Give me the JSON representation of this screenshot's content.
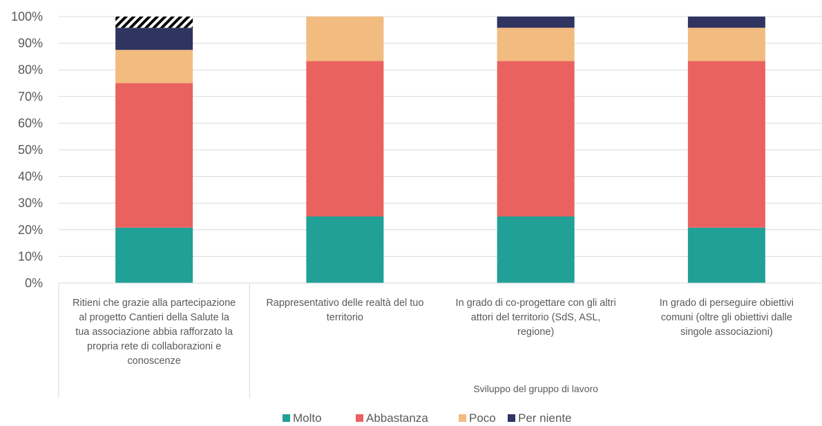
{
  "chart_data": {
    "type": "bar",
    "stacked": true,
    "categories": [
      [
        "Ritieni che grazie alla partecipazione",
        "al progetto Cantieri della Salute la",
        "tua associazione abbia rafforzato la",
        "propria rete di collaborazioni e",
        "conoscenze"
      ],
      [
        "Rappresentativo delle realtà del tuo",
        "territorio"
      ],
      [
        "In grado di co-progettare con gli altri",
        "attori del territorio (SdS, ASL,",
        "regione)"
      ],
      [
        "In grado di perseguire obiettivi",
        "comuni (oltre gli obiettivi dalle",
        "singole associazioni)"
      ]
    ],
    "group_label": "Sviluppo del gruppo di lavoro",
    "series": [
      {
        "name": "Molto",
        "color": "#20a096",
        "values": [
          20.8,
          25,
          25,
          20.8
        ]
      },
      {
        "name": "Abbastanza",
        "color": "#e9625f",
        "values": [
          54.2,
          58.3,
          58.3,
          62.5
        ]
      },
      {
        "name": "Poco",
        "color": "#f2bb80",
        "values": [
          12.5,
          16.7,
          12.5,
          12.5
        ]
      },
      {
        "name": "Per niente",
        "color": "#2f3461",
        "values": [
          8.3,
          0,
          4.2,
          4.2
        ]
      }
    ],
    "unlabeled_segment": {
      "pattern": "hatched",
      "values": [
        4.2,
        0,
        0,
        0
      ]
    },
    "yticks": [
      "0%",
      "10%",
      "20%",
      "30%",
      "40%",
      "50%",
      "60%",
      "70%",
      "80%",
      "90%",
      "100%"
    ],
    "ylim": [
      0,
      100
    ],
    "grid": true,
    "legend_position": "bottom"
  }
}
